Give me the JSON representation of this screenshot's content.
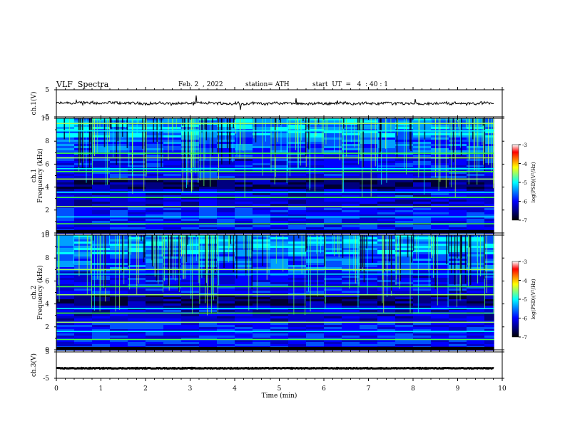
{
  "header": {
    "title": "VLF  Spectra",
    "date": "Feb. 2  , 2022",
    "station": "station= ATH",
    "start": "start  UT  =   4  : 40 : 1"
  },
  "chart_data": {
    "type": "heatmap",
    "x_axis": {
      "label": "Time  (min)",
      "range": [
        0,
        10
      ],
      "ticks": [
        0,
        1,
        2,
        3,
        4,
        5,
        6,
        7,
        8,
        9,
        10
      ],
      "data_end": 9.82
    },
    "panels": [
      {
        "id": "ch1-waveform",
        "type": "line",
        "ylabel": "ch.1(V)",
        "ylim": [
          -5,
          5
        ],
        "yticks": [
          5,
          -5
        ],
        "baseline_value": 0,
        "color": "#000000"
      },
      {
        "id": "ch1-spectrogram",
        "type": "heatmap",
        "ylabel": "ch.1\nFrequency (kHz)",
        "ylim": [
          0,
          10
        ],
        "yticks": [
          0,
          2,
          4,
          6,
          8,
          10
        ],
        "strong_lines_khz": [
          0.8,
          1.4,
          2.3,
          3.1,
          3.55,
          4.7,
          5.35,
          5.6,
          6.55,
          6.95,
          8.9,
          9.55
        ],
        "colorbar": {
          "label": "log(PSD)(V²/Hz)",
          "range": [
            -7,
            -3
          ],
          "ticks": [
            -3,
            -4,
            -5,
            -6,
            -7
          ]
        }
      },
      {
        "id": "ch2-spectrogram",
        "type": "heatmap",
        "ylabel": "ch.2\nFrequency (kHz)",
        "ylim": [
          0,
          10
        ],
        "yticks": [
          0,
          2,
          4,
          6,
          8,
          10
        ],
        "strong_lines_khz": [
          0.9,
          1.6,
          2.4,
          3.2,
          3.6,
          4.8,
          5.5,
          6.6,
          7.0
        ],
        "colorbar": {
          "label": "log(PSD)(V²/Hz)",
          "range": [
            -7,
            -3
          ],
          "ticks": [
            -3,
            -4,
            -5,
            -6,
            -7
          ]
        }
      },
      {
        "id": "ch3-waveform",
        "type": "line",
        "ylabel": "ch.3(V)",
        "ylim": [
          -5,
          5
        ],
        "yticks": [
          5,
          -5
        ],
        "baseline_value": -1.2,
        "color": "#000000"
      }
    ],
    "colormap": [
      "#000000",
      "#00007f",
      "#0000ff",
      "#0080ff",
      "#00ffff",
      "#80ff80",
      "#ffff00",
      "#ff8000",
      "#ff0000",
      "#ffffff"
    ]
  }
}
